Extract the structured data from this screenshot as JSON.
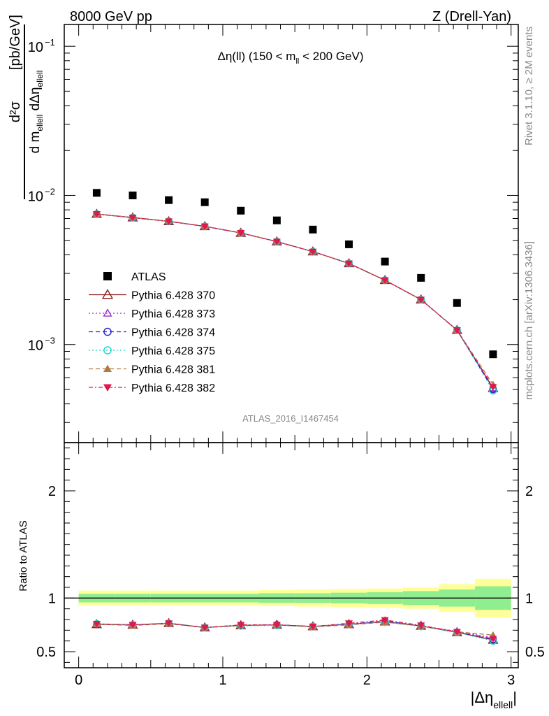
{
  "header": {
    "left": "8000 GeV pp",
    "right": "Z (Drell-Yan)"
  },
  "side_labels": {
    "rivet": "Rivet 3.1.10, ≥ 2M events",
    "mcplots": "mcplots.cern.ch [arXiv:1306.3436]"
  },
  "watermark": "ATLAS_2016_I1467454",
  "colors": {
    "atlas": "#000000",
    "p370": "#8b1a1a",
    "p373": "#9932cc",
    "p374": "#1f1fdb",
    "p375": "#19d6c8",
    "p381": "#b07a45",
    "p382": "#e0184b",
    "band_inner": "#90ee90",
    "band_outer": "#ffff99"
  },
  "chart_data": [
    {
      "type": "scatter",
      "panel": "main",
      "title": "Δη(ll) (150 < m_ll < 200 GeV)",
      "title_parts": {
        "pre": "Δη(ll) (150 < m",
        "sub": "ll",
        "post": " < 200 GeV)"
      },
      "ylabel_parts": {
        "num_main": "d²σ",
        "den_main": "d m",
        "den_sub1": "ellell",
        "den_mid": " dΔη",
        "den_sub2": "ellell",
        "unit": "[pb/GeV]"
      },
      "yscale": "log",
      "ylim": [
        0.00022,
        0.14
      ],
      "xlim": [
        -0.1,
        3.05
      ],
      "y_tick_labels": [
        {
          "value": 0.1,
          "base": "10",
          "exp": "−1"
        },
        {
          "value": 0.01,
          "base": "10",
          "exp": "−2"
        },
        {
          "value": 0.001,
          "base": "10",
          "exp": "−3"
        }
      ],
      "x": [
        0.125,
        0.375,
        0.625,
        0.875,
        1.125,
        1.375,
        1.625,
        1.875,
        2.125,
        2.375,
        2.625,
        2.875
      ],
      "series": [
        {
          "name": "ATLAS",
          "key": "atlas",
          "style": "data",
          "values": [
            0.0104,
            0.01,
            0.0093,
            0.009,
            0.0079,
            0.0068,
            0.0059,
            0.0047,
            0.0036,
            0.0028,
            0.0019,
            0.00086
          ]
        },
        {
          "name": "Pythia 6.428 370",
          "key": "p370",
          "marker": "tri-open",
          "dash": "",
          "values": [
            0.0075,
            0.0071,
            0.0067,
            0.0062,
            0.0056,
            0.0049,
            0.0042,
            0.0035,
            0.0027,
            0.002,
            0.00125,
            0.00051
          ]
        },
        {
          "name": "Pythia 6.428 373",
          "key": "p373",
          "marker": "tri-open-small",
          "dash": "2 3",
          "values": [
            0.0075,
            0.0071,
            0.0067,
            0.0062,
            0.0056,
            0.0049,
            0.0042,
            0.0035,
            0.0027,
            0.002,
            0.00125,
            0.00051
          ]
        },
        {
          "name": "Pythia 6.428 374",
          "key": "p374",
          "marker": "circle-open",
          "dash": "6 4",
          "values": [
            0.0075,
            0.0071,
            0.0067,
            0.0062,
            0.0056,
            0.0049,
            0.0042,
            0.0035,
            0.0027,
            0.002,
            0.00125,
            0.0005
          ]
        },
        {
          "name": "Pythia 6.428 375",
          "key": "p375",
          "marker": "circle-open",
          "dash": "2 3",
          "values": [
            0.0075,
            0.0071,
            0.0067,
            0.0062,
            0.0056,
            0.0049,
            0.0042,
            0.0035,
            0.0027,
            0.002,
            0.00125,
            0.00049
          ]
        },
        {
          "name": "Pythia 6.428 381",
          "key": "p381",
          "marker": "tri-filled",
          "dash": "6 4",
          "values": [
            0.0075,
            0.0071,
            0.0067,
            0.0062,
            0.0056,
            0.0049,
            0.0042,
            0.0035,
            0.0027,
            0.002,
            0.00125,
            0.00054
          ]
        },
        {
          "name": "Pythia 6.428 382",
          "key": "p382",
          "marker": "tri-down-filled",
          "dash": "6 3 2 3",
          "values": [
            0.0075,
            0.0071,
            0.0067,
            0.0062,
            0.0056,
            0.0049,
            0.0042,
            0.0035,
            0.0027,
            0.002,
            0.00125,
            0.00052
          ]
        }
      ],
      "legend": "left-middle"
    },
    {
      "type": "scatter",
      "panel": "ratio",
      "ylabel": "Ratio to ATLAS",
      "ylim": [
        0.35,
        2.45
      ],
      "xlim": [
        -0.1,
        3.05
      ],
      "x_ticks": [
        0,
        1,
        2,
        3
      ],
      "y_ticks": [
        0.5,
        1,
        2
      ],
      "y_tick_labels": [
        "0.5",
        "1",
        "2"
      ],
      "x_tick_labels": [
        "0",
        "1",
        "2",
        "3"
      ],
      "xlabel_parts": {
        "main": "|Δη",
        "sub": "ellell",
        "post": "|"
      },
      "band_edges": [
        0,
        0.25,
        0.5,
        0.75,
        1,
        1.25,
        1.5,
        1.75,
        2,
        2.25,
        2.5,
        2.75,
        3
      ],
      "band_inner": [
        0.04,
        0.04,
        0.04,
        0.04,
        0.04,
        0.045,
        0.045,
        0.05,
        0.055,
        0.065,
        0.08,
        0.11
      ],
      "band_outer": [
        0.07,
        0.07,
        0.07,
        0.07,
        0.07,
        0.075,
        0.08,
        0.085,
        0.09,
        0.1,
        0.13,
        0.18
      ],
      "x": [
        0.125,
        0.375,
        0.625,
        0.875,
        1.125,
        1.375,
        1.625,
        1.875,
        2.125,
        2.375,
        2.625,
        2.875
      ],
      "series": [
        {
          "key": "p370",
          "values": [
            0.755,
            0.75,
            0.765,
            0.725,
            0.745,
            0.75,
            0.735,
            0.755,
            0.78,
            0.74,
            0.68,
            0.61
          ]
        },
        {
          "key": "p373",
          "values": [
            0.755,
            0.75,
            0.765,
            0.725,
            0.745,
            0.75,
            0.735,
            0.755,
            0.78,
            0.74,
            0.69,
            0.63
          ]
        },
        {
          "key": "p374",
          "values": [
            0.755,
            0.75,
            0.765,
            0.725,
            0.745,
            0.75,
            0.735,
            0.755,
            0.785,
            0.74,
            0.68,
            0.615
          ]
        },
        {
          "key": "p375",
          "values": [
            0.76,
            0.75,
            0.765,
            0.725,
            0.74,
            0.745,
            0.735,
            0.755,
            0.775,
            0.735,
            0.68,
            0.6
          ]
        },
        {
          "key": "p381",
          "values": [
            0.755,
            0.745,
            0.76,
            0.725,
            0.745,
            0.75,
            0.73,
            0.75,
            0.775,
            0.74,
            0.685,
            0.655
          ]
        },
        {
          "key": "p382",
          "values": [
            0.76,
            0.75,
            0.765,
            0.725,
            0.75,
            0.75,
            0.735,
            0.765,
            0.795,
            0.745,
            0.685,
            0.62
          ]
        }
      ]
    }
  ]
}
